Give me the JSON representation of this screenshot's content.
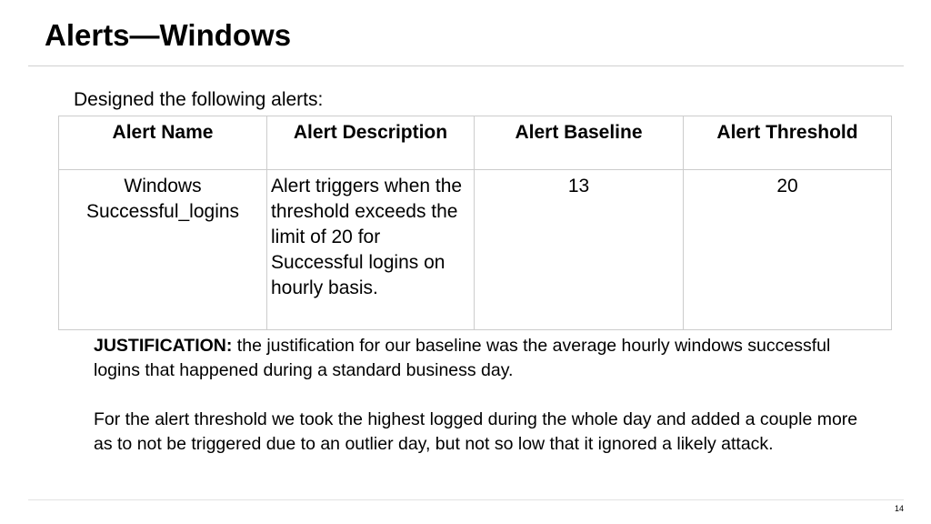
{
  "slide": {
    "title": "Alerts—Windows",
    "intro": "Designed the following alerts:",
    "page_number": "14"
  },
  "table": {
    "headers": [
      "Alert Name",
      "Alert Description",
      "Alert Baseline",
      "Alert Threshold"
    ],
    "row": {
      "name": "Windows Successful_logins",
      "description": "Alert triggers when the threshold exceeds the limit of 20 for Successful logins on hourly basis.",
      "baseline": "13",
      "threshold": "20"
    }
  },
  "justification": {
    "label": "JUSTIFICATION:",
    "text": " the justification for our baseline was the average hourly windows successful logins that happened during a standard business day.",
    "paragraph2": "For the alert threshold we took the highest logged during the whole day and added a couple more as to not be triggered due to an outlier day, but not so low that it ignored a likely attack."
  }
}
